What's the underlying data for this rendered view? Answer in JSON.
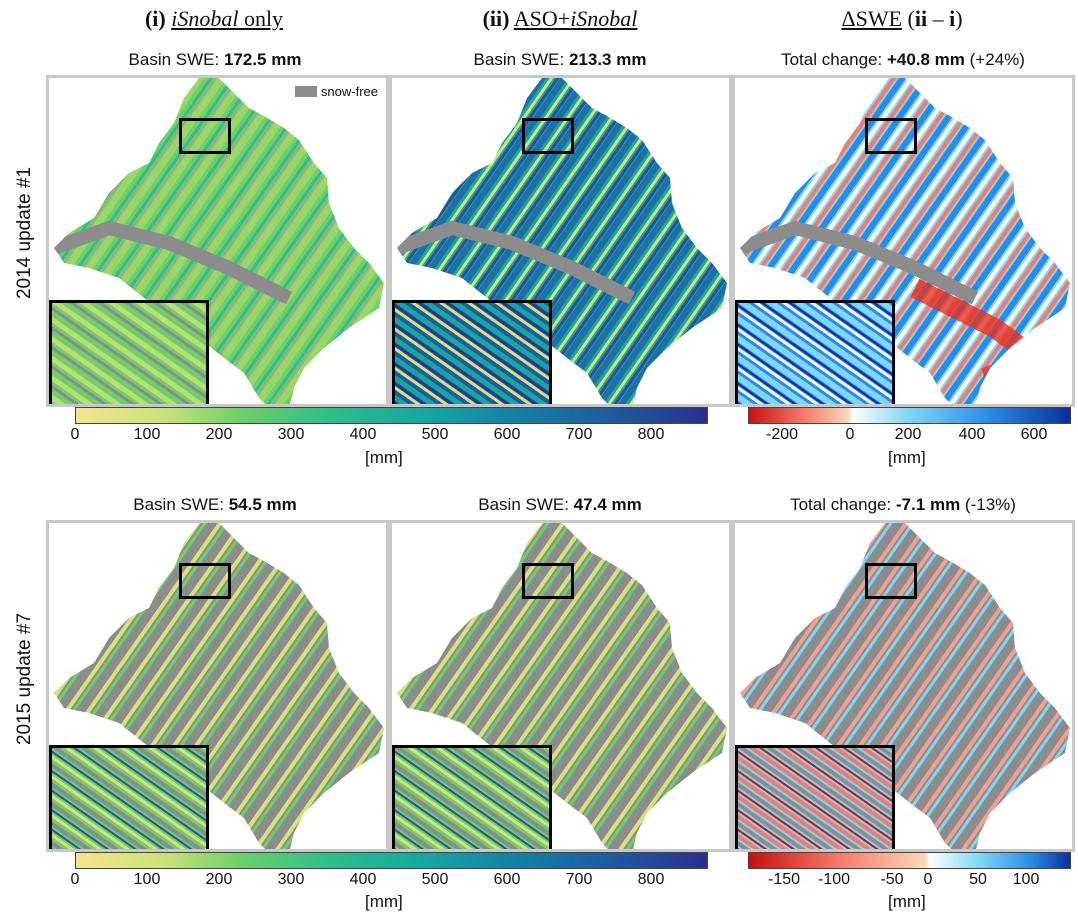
{
  "columns": [
    {
      "num": "(i)",
      "name_italic": "iSnobal",
      "name_rest": " only"
    },
    {
      "num": "(ii)",
      "name_pre": "ASO+",
      "name_italic": "iSnobal"
    },
    {
      "name": "ΔSWE",
      "num_open": "(",
      "num_bold": "ii",
      "num_mid": " – ",
      "num_bold2": "i",
      "num_close": ")"
    }
  ],
  "rows": [
    {
      "label": "2014 update #1",
      "panels": [
        {
          "prefix": "Basin SWE: ",
          "value": "172.5 mm",
          "suffix": ""
        },
        {
          "prefix": "Basin SWE: ",
          "value": "213.3 mm",
          "suffix": ""
        },
        {
          "prefix": "Total change: ",
          "value": "+40.8 mm",
          "suffix": " (+24%)"
        }
      ],
      "swe_colorbar": {
        "ticks": [
          "0",
          "100",
          "200",
          "300",
          "400",
          "500",
          "600",
          "700",
          "800"
        ],
        "unit": "[mm]"
      },
      "diff_colorbar": {
        "ticks": [
          "-200",
          "0",
          "200",
          "400",
          "600"
        ],
        "unit": "[mm]"
      }
    },
    {
      "label": "2015 update #7",
      "panels": [
        {
          "prefix": "Basin SWE: ",
          "value": "54.5 mm",
          "suffix": ""
        },
        {
          "prefix": "Basin SWE: ",
          "value": "47.4 mm",
          "suffix": ""
        },
        {
          "prefix": "Total change: ",
          "value": "-7.1 mm",
          "suffix": " (-13%)"
        }
      ],
      "swe_colorbar": {
        "ticks": [
          "0",
          "100",
          "200",
          "300",
          "400",
          "500",
          "600",
          "700",
          "800"
        ],
        "unit": "[mm]"
      },
      "diff_colorbar": {
        "ticks": [
          "-150",
          "-100",
          "-50",
          "0",
          "50",
          "100"
        ],
        "unit": "[mm]"
      }
    }
  ],
  "legend": {
    "snow_free_label": "snow-free",
    "snow_free_color": "#8c8c8c"
  },
  "colors": {
    "swe_scale": [
      "#f7e58c",
      "#c9e37a",
      "#6fcf6a",
      "#2dbf8a",
      "#16a7a0",
      "#1480a6",
      "#1f5a9e",
      "#2b2f8f"
    ],
    "diff_scale_neg": [
      "#c81010",
      "#f47a6a",
      "#fbd8b8"
    ],
    "diff_scale_pos": [
      "#ffffff",
      "#7fd6f5",
      "#2a8ae6",
      "#0b2f9a"
    ],
    "snow_free": "#8c8c8c"
  }
}
